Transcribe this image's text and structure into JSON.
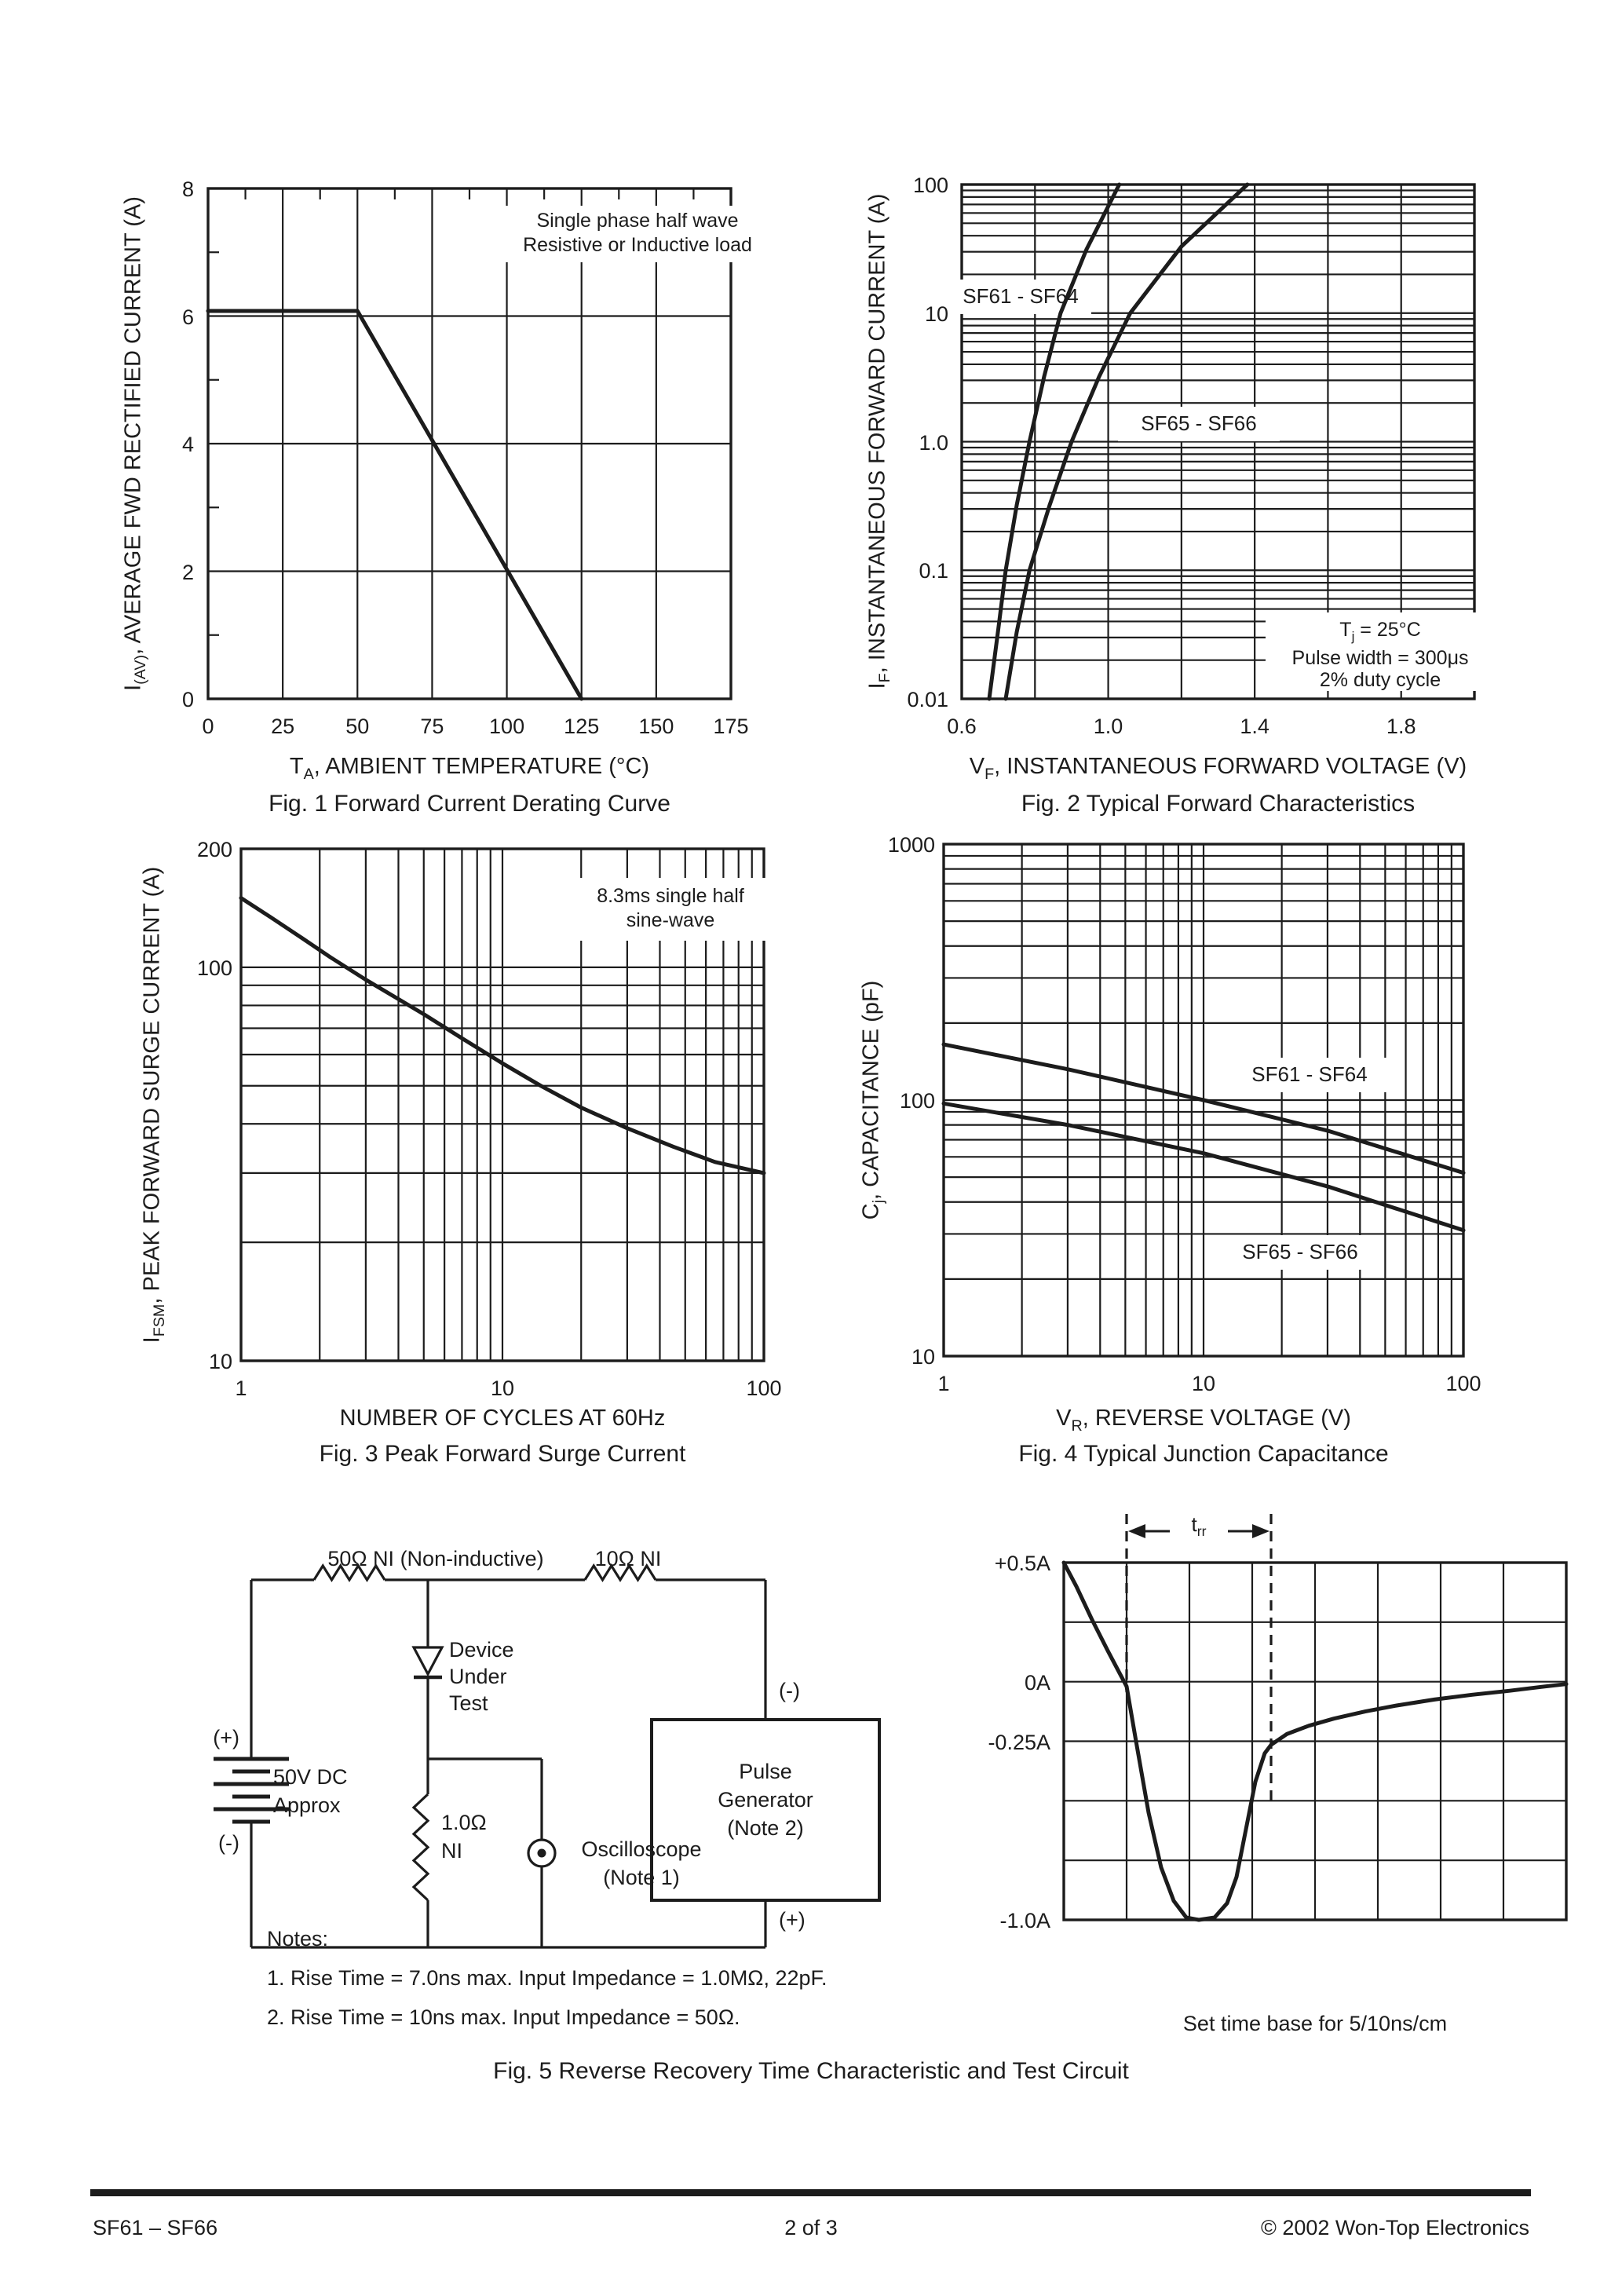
{
  "page": {
    "bg": "#ffffff",
    "ink": "#1c1c1c"
  },
  "fig1": {
    "caption": "Fig. 1  Forward Current Derating Curve",
    "xlabel": [
      {
        "t": "T"
      },
      {
        "t": "A",
        "sub": true
      },
      {
        "t": ", AMBIENT TEMPERATURE (°C)"
      }
    ],
    "ylabel": [
      {
        "t": "I"
      },
      {
        "t": "(AV)",
        "sub": true
      },
      {
        "t": ", AVERAGE FWD RECTIFIED CURRENT (A)"
      }
    ],
    "annotation": "Single phase half wave\nResistive or Inductive load",
    "chart_data": {
      "type": "line",
      "x": {
        "type": "linear",
        "min": 0,
        "max": 175,
        "grid_step": 25,
        "ticks": [
          {
            "v": 0,
            "t": "0"
          },
          {
            "v": 25,
            "t": "25"
          },
          {
            "v": 50,
            "t": "50"
          },
          {
            "v": 75,
            "t": "75"
          },
          {
            "v": 100,
            "t": "100"
          },
          {
            "v": 125,
            "t": "125"
          },
          {
            "v": 150,
            "t": "150"
          },
          {
            "v": 175,
            "t": "175"
          }
        ],
        "edge_minor_step": 12.5
      },
      "y": {
        "type": "linear",
        "min": 0,
        "max": 8,
        "grid_step": 2,
        "ticks": [
          {
            "v": 8,
            "t": "8"
          },
          {
            "v": 6,
            "t": "6"
          },
          {
            "v": 4,
            "t": "4"
          },
          {
            "v": 2,
            "t": "2"
          },
          {
            "v": 0,
            "t": "0"
          }
        ],
        "edge_minor_step": 1
      },
      "series": [
        {
          "name": "derating-curve",
          "points": [
            [
              0,
              6.08
            ],
            [
              50,
              6.08
            ],
            [
              125,
              0
            ]
          ]
        }
      ]
    }
  },
  "fig2": {
    "caption": "Fig. 2  Typical Forward Characteristics",
    "xlabel": [
      {
        "t": "V"
      },
      {
        "t": "F",
        "sub": true
      },
      {
        "t": ", INSTANTANEOUS FORWARD VOLTAGE (V)"
      }
    ],
    "ylabel": [
      {
        "t": "I"
      },
      {
        "t": "F",
        "sub": true
      },
      {
        "t": ", INSTANTANEOUS FORWARD CURRENT (A)"
      }
    ],
    "note": [
      [
        {
          "t": "T"
        },
        {
          "t": "j",
          "sub": true
        },
        {
          "t": " = 25°C"
        }
      ],
      [
        {
          "t": "Pulse width = 300μs"
        }
      ],
      [
        {
          "t": "2% duty cycle"
        }
      ]
    ],
    "chart_data": {
      "type": "line",
      "x": {
        "type": "linear",
        "min": 0.6,
        "max": 2.0,
        "grid_step": 0.2,
        "ticks": [
          {
            "v": 0.6,
            "t": "0.6"
          },
          {
            "v": 1.0,
            "t": "1.0"
          },
          {
            "v": 1.4,
            "t": "1.4"
          },
          {
            "v": 1.8,
            "t": "1.8"
          }
        ]
      },
      "y": {
        "type": "log",
        "min": 0.01,
        "max": 100,
        "ticks": [
          {
            "v": 100,
            "t": "100"
          },
          {
            "v": 10,
            "t": "10"
          },
          {
            "v": 1,
            "t": "1.0"
          },
          {
            "v": 0.1,
            "t": "0.1"
          },
          {
            "v": 0.01,
            "t": "0.01"
          }
        ]
      },
      "series": [
        {
          "name": "SF61 - SF64",
          "points": [
            [
              0.675,
              0.01
            ],
            [
              0.7,
              0.035
            ],
            [
              0.72,
              0.1
            ],
            [
              0.75,
              0.32
            ],
            [
              0.785,
              1
            ],
            [
              0.825,
              3.2
            ],
            [
              0.87,
              10
            ],
            [
              0.94,
              31
            ],
            [
              1.03,
              100
            ]
          ]
        },
        {
          "name": "SF65 - SF66",
          "points": [
            [
              0.72,
              0.01
            ],
            [
              0.75,
              0.033
            ],
            [
              0.785,
              0.1
            ],
            [
              0.84,
              0.32
            ],
            [
              0.9,
              1
            ],
            [
              0.975,
              3.2
            ],
            [
              1.06,
              10
            ],
            [
              1.2,
              33
            ],
            [
              1.38,
              100
            ]
          ]
        }
      ]
    }
  },
  "fig3": {
    "caption": "Fig. 3  Peak Forward Surge Current",
    "xlabel": [
      {
        "t": "NUMBER OF CYCLES AT 60Hz"
      }
    ],
    "ylabel": [
      {
        "t": "I"
      },
      {
        "t": "FSM",
        "sub": true
      },
      {
        "t": ", PEAK FORWARD SURGE CURRENT (A)"
      }
    ],
    "annotation": "8.3ms single half\nsine-wave",
    "chart_data": {
      "type": "line",
      "x": {
        "type": "log",
        "min": 1,
        "max": 100,
        "ticks": [
          {
            "v": 1,
            "t": "1"
          },
          {
            "v": 10,
            "t": "10"
          },
          {
            "v": 100,
            "t": "100"
          }
        ]
      },
      "y": {
        "type": "log",
        "min": 10,
        "max": 200,
        "ticks": [
          {
            "v": 200,
            "t": "200"
          },
          {
            "v": 100,
            "t": "100"
          },
          {
            "v": 10,
            "t": "10"
          }
        ]
      },
      "series": [
        {
          "name": "surge-current",
          "points": [
            [
              1,
              150
            ],
            [
              1.3,
              134
            ],
            [
              1.7,
              119
            ],
            [
              2.2,
              106
            ],
            [
              3,
              93
            ],
            [
              4,
              83
            ],
            [
              5,
              76
            ],
            [
              7,
              66
            ],
            [
              10,
              57
            ],
            [
              14,
              50
            ],
            [
              20,
              44
            ],
            [
              30,
              39
            ],
            [
              45,
              35
            ],
            [
              65,
              32
            ],
            [
              100,
              30
            ]
          ]
        }
      ]
    }
  },
  "fig4": {
    "caption": "Fig. 4  Typical Junction Capacitance",
    "xlabel": [
      {
        "t": "V"
      },
      {
        "t": "R",
        "sub": true
      },
      {
        "t": ", REVERSE VOLTAGE (V)"
      }
    ],
    "ylabel": [
      {
        "t": "C"
      },
      {
        "t": "j",
        "sub": true
      },
      {
        "t": ", CAPACITANCE (pF)"
      }
    ],
    "chart_data": {
      "type": "line",
      "x": {
        "type": "log",
        "min": 1,
        "max": 100,
        "ticks": [
          {
            "v": 1,
            "t": "1"
          },
          {
            "v": 10,
            "t": "10"
          },
          {
            "v": 100,
            "t": "100"
          }
        ]
      },
      "y": {
        "type": "log",
        "min": 10,
        "max": 1000,
        "ticks": [
          {
            "v": 1000,
            "t": "1000"
          },
          {
            "v": 100,
            "t": "100"
          },
          {
            "v": 10,
            "t": "10"
          }
        ]
      },
      "series": [
        {
          "name": "SF61 - SF64",
          "points": [
            [
              1,
              165
            ],
            [
              3,
              132
            ],
            [
              10,
              100
            ],
            [
              30,
              76
            ],
            [
              100,
              52
            ]
          ]
        },
        {
          "name": "SF65 - SF66",
          "points": [
            [
              1,
              97
            ],
            [
              3,
              80
            ],
            [
              10,
              62
            ],
            [
              30,
              46
            ],
            [
              100,
              31
            ]
          ]
        }
      ]
    }
  },
  "fig5": {
    "caption": "Fig. 5  Reverse Recovery Time Characteristic and Test Circuit",
    "circuit": {
      "r_top_left": "50Ω NI (Non-inductive)",
      "r_top_right": "10Ω NI",
      "dut": "Device\nUnder\nTest",
      "battery_plus": "(+)",
      "battery": "50V DC\nApprox",
      "battery_minus": "(-)",
      "r_shunt": "1.0Ω\nNI",
      "scope": "Oscilloscope\n(Note 1)",
      "pg_minus": "(-)",
      "pulse_gen": "Pulse\nGenerator\n(Note 2)",
      "pg_plus": "(+)"
    },
    "notes": {
      "title": "Notes:",
      "lines": [
        "1. Rise Time = 7.0ns max. Input Impedance = 1.0MΩ, 22pF.",
        "2. Rise Time = 10ns max. Input Impedance = 50Ω."
      ]
    },
    "waveform": {
      "trr": [
        {
          "t": "t"
        },
        {
          "t": "rr",
          "sub": true
        }
      ],
      "timebase": "Set time base for 5/10ns/cm",
      "chart_data": {
        "type": "line",
        "x": {
          "type": "linear",
          "min": 0,
          "max": 8,
          "grid_step": 1,
          "ticks": []
        },
        "y": {
          "type": "linear",
          "min": -1.0,
          "max": 0.5,
          "grid_step": 0.25,
          "ticks": [
            {
              "v": 0.5,
              "t": "+0.5A"
            },
            {
              "v": 0,
              "t": "0A"
            },
            {
              "v": -0.25,
              "t": "-0.25A"
            },
            {
              "v": -1.0,
              "t": "-1.0A"
            }
          ]
        },
        "dashed_x": [
          1.0,
          3.3
        ],
        "series": [
          {
            "name": "recovery-waveform",
            "points": [
              [
                0,
                0.5
              ],
              [
                0.2,
                0.4
              ],
              [
                0.45,
                0.26
              ],
              [
                0.7,
                0.13
              ],
              [
                0.9,
                0.03
              ],
              [
                1.0,
                -0.02
              ],
              [
                1.15,
                -0.25
              ],
              [
                1.35,
                -0.55
              ],
              [
                1.55,
                -0.78
              ],
              [
                1.75,
                -0.92
              ],
              [
                1.95,
                -0.99
              ],
              [
                2.15,
                -1.0
              ],
              [
                2.4,
                -0.99
              ],
              [
                2.6,
                -0.93
              ],
              [
                2.75,
                -0.82
              ],
              [
                2.9,
                -0.62
              ],
              [
                3.05,
                -0.42
              ],
              [
                3.2,
                -0.3
              ],
              [
                3.3,
                -0.265
              ],
              [
                3.55,
                -0.22
              ],
              [
                3.9,
                -0.185
              ],
              [
                4.3,
                -0.155
              ],
              [
                4.8,
                -0.125
              ],
              [
                5.3,
                -0.1
              ],
              [
                5.9,
                -0.075
              ],
              [
                6.5,
                -0.055
              ],
              [
                7.1,
                -0.038
              ],
              [
                7.6,
                -0.022
              ],
              [
                8.0,
                -0.01
              ]
            ]
          }
        ]
      }
    }
  },
  "footer": {
    "left": "SF61 – SF66",
    "center": "2 of 3",
    "right": "© 2002 Won-Top Electronics"
  }
}
